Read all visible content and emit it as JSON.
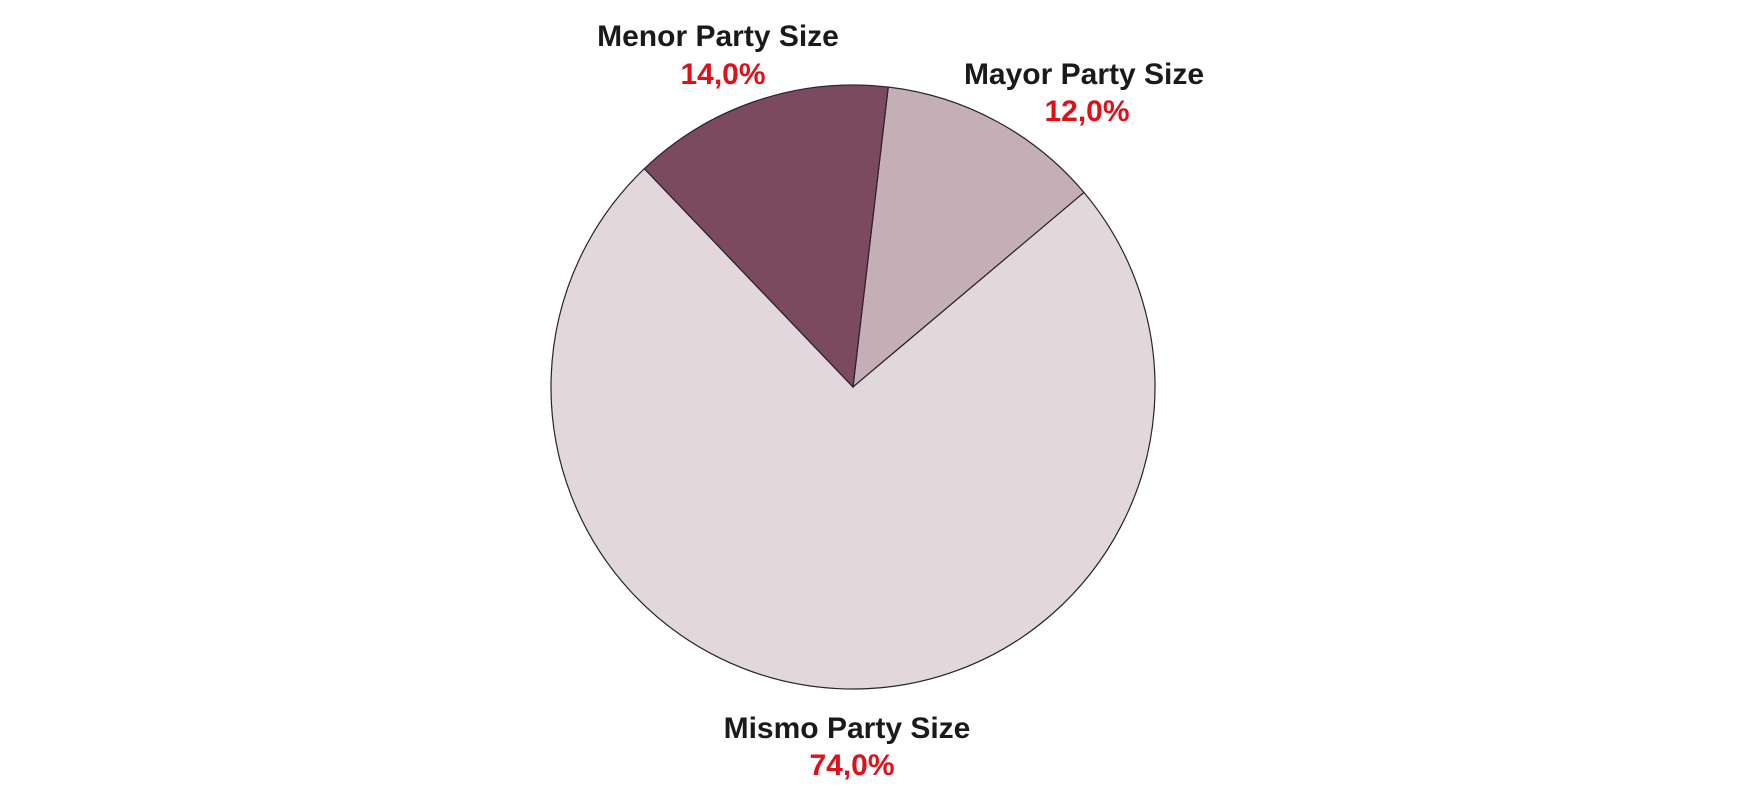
{
  "chart_data": {
    "type": "pie",
    "categories": [
      "Mayor Party Size",
      "Mismo Party Size",
      "Menor Party Size"
    ],
    "values": [
      12,
      74,
      14
    ],
    "value_labels": [
      "12,0%",
      "74,0%",
      "14,0%"
    ],
    "colors": [
      "#c4afb7",
      "#e2d8dc",
      "#7b4a5f"
    ]
  }
}
